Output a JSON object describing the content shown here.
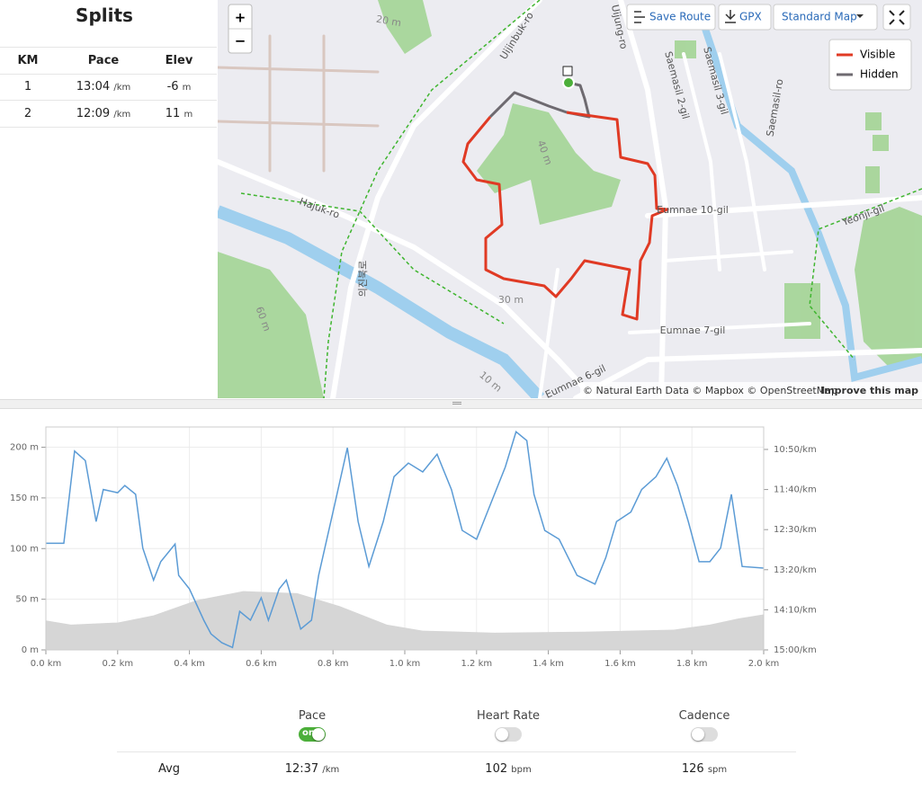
{
  "splits": {
    "title": "Splits",
    "headers": [
      "KM",
      "Pace",
      "Elev"
    ],
    "rows": [
      {
        "km": "1",
        "pace": "13:04",
        "pace_unit": "/km",
        "elev": "-6",
        "elev_unit": "m"
      },
      {
        "km": "2",
        "pace": "12:09",
        "pace_unit": "/km",
        "elev": "11",
        "elev_unit": "m"
      }
    ]
  },
  "map": {
    "zoom": [
      "+",
      "−"
    ],
    "buttons": [
      "Save Route",
      "GPX",
      "Standard Map"
    ],
    "legend": [
      {
        "name": "Visible",
        "color": "#e03a24"
      },
      {
        "name": "Hidden",
        "color": "#6e6a70"
      }
    ],
    "labels": [
      "Uijinbuk-ro",
      "Hajuk-ro",
      "Uijung-ro",
      "Saemasil 2-gil",
      "Saemasil 3-gil",
      "Saemasil-ro",
      "Eumnae 10-gil",
      "Eumnae 7-gil",
      "Eumnae 6-gil",
      "Yeonji-gil",
      "20 m",
      "40 m",
      "30 m",
      "10 m",
      "60 m",
      "의진북로"
    ],
    "attribution": "© Natural Earth Data © Mapbox © OpenStreetMap",
    "improve": "Improve this map"
  },
  "chart_data": {
    "type": "line",
    "xlim": [
      0,
      2
    ],
    "xticks": [
      {
        "value": 0,
        "label": "0.0 km"
      },
      {
        "value": 0.2,
        "label": "0.2 km"
      },
      {
        "value": 0.4,
        "label": "0.4 km"
      },
      {
        "value": 0.6,
        "label": "0.6 km"
      },
      {
        "value": 0.8,
        "label": "0.8 km"
      },
      {
        "value": 1,
        "label": "1.0 km"
      },
      {
        "value": 1.2,
        "label": "1.2 km"
      },
      {
        "value": 1.4,
        "label": "1.4 km"
      },
      {
        "value": 1.6,
        "label": "1.6 km"
      },
      {
        "value": 1.8,
        "label": "1.8 km"
      },
      {
        "value": 2,
        "label": "2.0 km"
      }
    ],
    "ylim": [
      0,
      220
    ],
    "yticks": [
      {
        "value": 0,
        "label": "0 m"
      },
      {
        "value": 50,
        "label": "50 m"
      },
      {
        "value": 100,
        "label": "100 m"
      },
      {
        "value": 150,
        "label": "150 m"
      },
      {
        "value": 200,
        "label": "200 m"
      }
    ],
    "y2lim": [
      900,
      622
    ],
    "y2ticks": [
      {
        "value": 650,
        "label": "10:50/km"
      },
      {
        "value": 700,
        "label": "11:40/km"
      },
      {
        "value": 750,
        "label": "12:30/km"
      },
      {
        "value": 800,
        "label": "13:20/km"
      },
      {
        "value": 850,
        "label": "14:10/km"
      },
      {
        "value": 900,
        "label": "15:00/km"
      }
    ],
    "grid": true,
    "series": [
      {
        "kind": "area",
        "color": "#d6d6d6",
        "x": [
          0,
          0.07,
          0.2,
          0.3,
          0.42,
          0.55,
          0.7,
          0.82,
          0.95,
          1.05,
          1.25,
          1.5,
          1.75,
          1.85,
          1.93,
          2
        ],
        "values": [
          29,
          25,
          27,
          34,
          49,
          58,
          56,
          43,
          25,
          19,
          17,
          18,
          20,
          25,
          31,
          35
        ]
      },
      {
        "kind": "line",
        "axis": "y2",
        "color": "#5b9bd5",
        "x": [
          0,
          0.05,
          0.08,
          0.11,
          0.14,
          0.16,
          0.2,
          0.22,
          0.25,
          0.27,
          0.3,
          0.32,
          0.36,
          0.37,
          0.4,
          0.44,
          0.46,
          0.49,
          0.52,
          0.54,
          0.57,
          0.6,
          0.62,
          0.65,
          0.67,
          0.71,
          0.74,
          0.76,
          0.8,
          0.84,
          0.87,
          0.9,
          0.94,
          0.97,
          1.01,
          1.05,
          1.09,
          1.13,
          1.16,
          1.2,
          1.24,
          1.28,
          1.31,
          1.34,
          1.36,
          1.39,
          1.43,
          1.48,
          1.53,
          1.56,
          1.59,
          1.63,
          1.66,
          1.7,
          1.73,
          1.76,
          1.79,
          1.82,
          1.85,
          1.88,
          1.91,
          1.94,
          2
        ],
        "values": [
          767,
          767,
          652,
          664,
          740,
          700,
          704,
          695,
          706,
          773,
          813,
          790,
          768,
          807,
          824,
          863,
          880,
          891,
          897,
          852,
          863,
          835,
          863,
          824,
          813,
          874,
          863,
          807,
          728,
          648,
          740,
          796,
          740,
          684,
          667,
          678,
          656,
          700,
          751,
          762,
          717,
          672,
          628,
          639,
          706,
          751,
          762,
          807,
          818,
          785,
          740,
          728,
          700,
          684,
          661,
          695,
          740,
          790,
          790,
          773,
          706,
          796,
          798
        ]
      }
    ]
  },
  "stats": {
    "toggles": [
      {
        "label": "Pace",
        "on": true,
        "state": "on"
      },
      {
        "label": "Heart Rate",
        "on": false
      },
      {
        "label": "Cadence",
        "on": false
      }
    ],
    "avg_label": "Avg",
    "avg": [
      {
        "value": "12:37",
        "unit": "/km"
      },
      {
        "value": "102",
        "unit": "bpm"
      },
      {
        "value": "126",
        "unit": "spm"
      }
    ]
  }
}
